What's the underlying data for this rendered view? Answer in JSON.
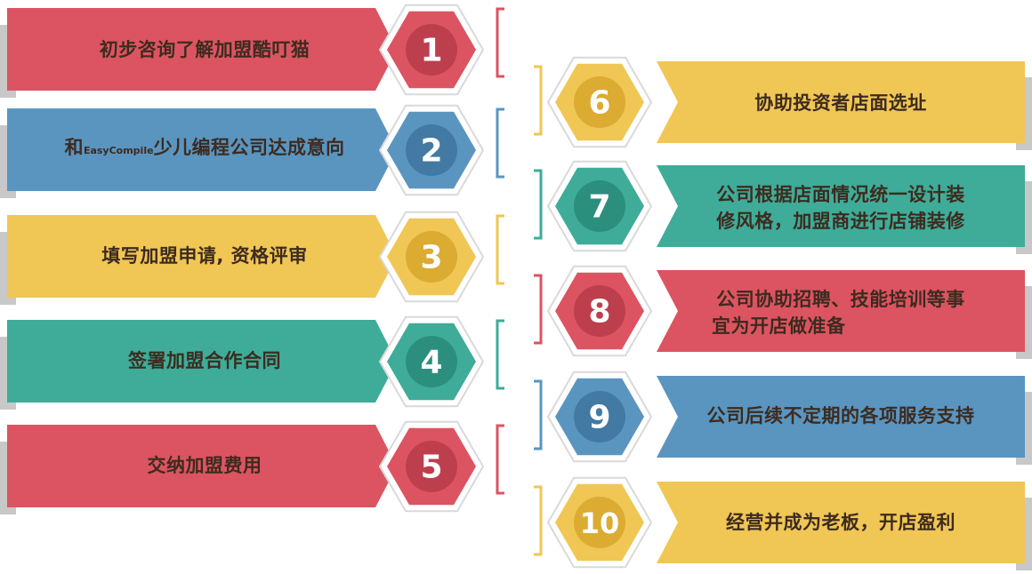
{
  "steps": [
    {
      "number": "1",
      "text": "初步咨询了解加盟酷叮猫",
      "color": "#dc5461",
      "dark": "#bd3f4d",
      "side": "left"
    },
    {
      "number": "2",
      "text_prefix": "和",
      "brand": "EasyCompile",
      "text_suffix": "少儿编程公司达成意向",
      "color": "#5a95c0",
      "dark": "#427aa3",
      "side": "left"
    },
    {
      "number": "3",
      "text": "填写加盟申请, 资格评审",
      "color": "#f0c655",
      "dark": "#dcab32",
      "side": "left"
    },
    {
      "number": "4",
      "text": "签署加盟合作合同",
      "color": "#3eac98",
      "dark": "#2c8f7d",
      "side": "left"
    },
    {
      "number": "5",
      "text": "交纳加盟费用",
      "color": "#dc5461",
      "dark": "#bd3f4d",
      "side": "left"
    },
    {
      "number": "6",
      "text": "协助投资者店面选址",
      "color": "#f0c655",
      "dark": "#dcab32",
      "side": "right"
    },
    {
      "number": "7",
      "text_line1": "公司根据店面情况统一设计装",
      "text_line2": "修风格，加盟商进行店铺装修",
      "color": "#3eac98",
      "dark": "#2c8f7d",
      "side": "right"
    },
    {
      "number": "8",
      "text_line1": "公司协助招聘、技能培训等事",
      "text_line2": "宜为开店做准备",
      "color": "#dc5461",
      "dark": "#bd3f4d",
      "side": "right"
    },
    {
      "number": "9",
      "text": "公司后续不定期的各项服务支持",
      "color": "#5a95c0",
      "dark": "#427aa3",
      "side": "right"
    },
    {
      "number": "10",
      "text": "经营并成为老板，开店盈利",
      "color": "#f0c655",
      "dark": "#dcab32",
      "side": "right"
    }
  ]
}
